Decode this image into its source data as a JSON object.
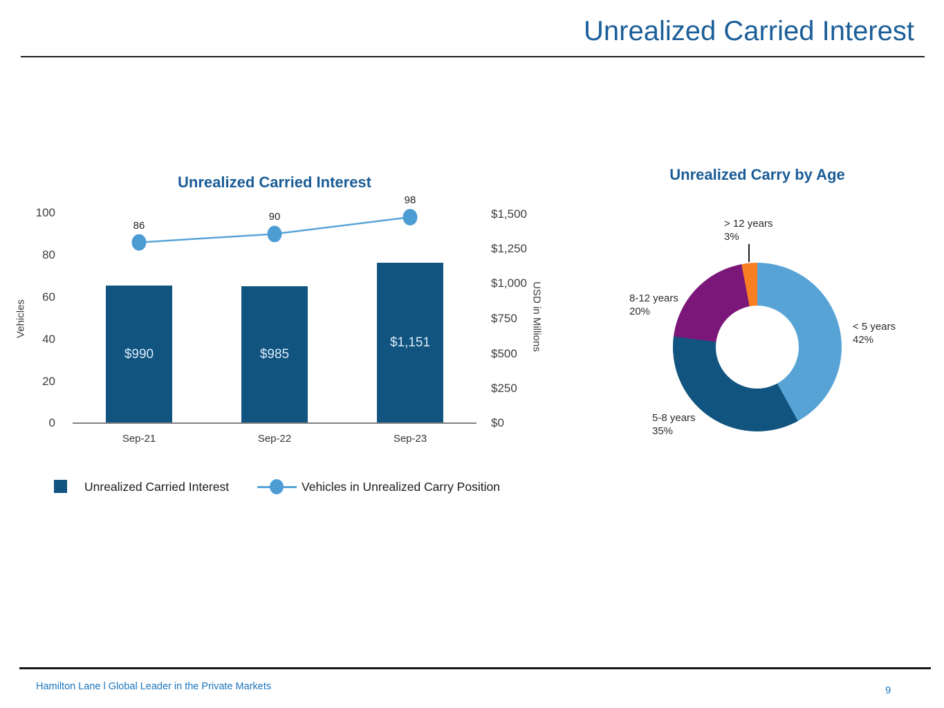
{
  "page": {
    "title": "Unrealized Carried Interest",
    "footer": "Hamilton Lane l Global Leader in the Private Markets",
    "page_number": "9"
  },
  "colors": {
    "title_blue": "#1B5E98",
    "chart_title_blue": "#1A5C96",
    "bar_blue": "#115480",
    "line_blue": "#58A3D6",
    "marker_blue": "#4D9DD4",
    "donut_light_blue": "#58A3D6",
    "donut_dark_blue": "#115480",
    "donut_purple": "#7A1778",
    "donut_orange": "#F87D23",
    "footer_blue": "#1C75BC"
  },
  "chart_data": [
    {
      "type": "bar",
      "title": "Unrealized Carried Interest",
      "categories": [
        "Sep-21",
        "Sep-22",
        "Sep-23"
      ],
      "series": [
        {
          "name": "Unrealized Carried Interest",
          "type": "bar",
          "axis": "right",
          "values": [
            990,
            985,
            1151
          ],
          "labels": [
            "$990",
            "$985",
            "$1,151"
          ]
        },
        {
          "name": "Vehicles in Unrealized Carry Position",
          "type": "line",
          "axis": "left",
          "values": [
            86,
            90,
            98
          ]
        }
      ],
      "left_axis": {
        "title": "Vehicles",
        "range": [
          0,
          100
        ],
        "ticks": [
          "100",
          "80",
          "60",
          "40",
          "20",
          "0"
        ]
      },
      "right_axis": {
        "title": "USD in Millions",
        "range": [
          0,
          1500
        ],
        "ticks": [
          "$1,500",
          "$1,250",
          "$1,000",
          "$750",
          "$500",
          "$250",
          "$0"
        ]
      },
      "legend": [
        "Unrealized Carried Interest",
        "Vehicles in Unrealized Carry Position"
      ],
      "grid": false,
      "legend_position": "bottom"
    },
    {
      "type": "pie",
      "donut": true,
      "title": "Unrealized Carry by Age",
      "slices": [
        {
          "label": "< 5 years",
          "pct": "42%",
          "value": 42,
          "color": "#58A3D6"
        },
        {
          "label": "5-8 years",
          "pct": "35%",
          "value": 35,
          "color": "#115480"
        },
        {
          "label": "8-12 years",
          "pct": "20%",
          "value": 20,
          "color": "#7A1778"
        },
        {
          "label": "> 12 years",
          "pct": "3%",
          "value": 3,
          "color": "#F87D23"
        }
      ]
    }
  ]
}
